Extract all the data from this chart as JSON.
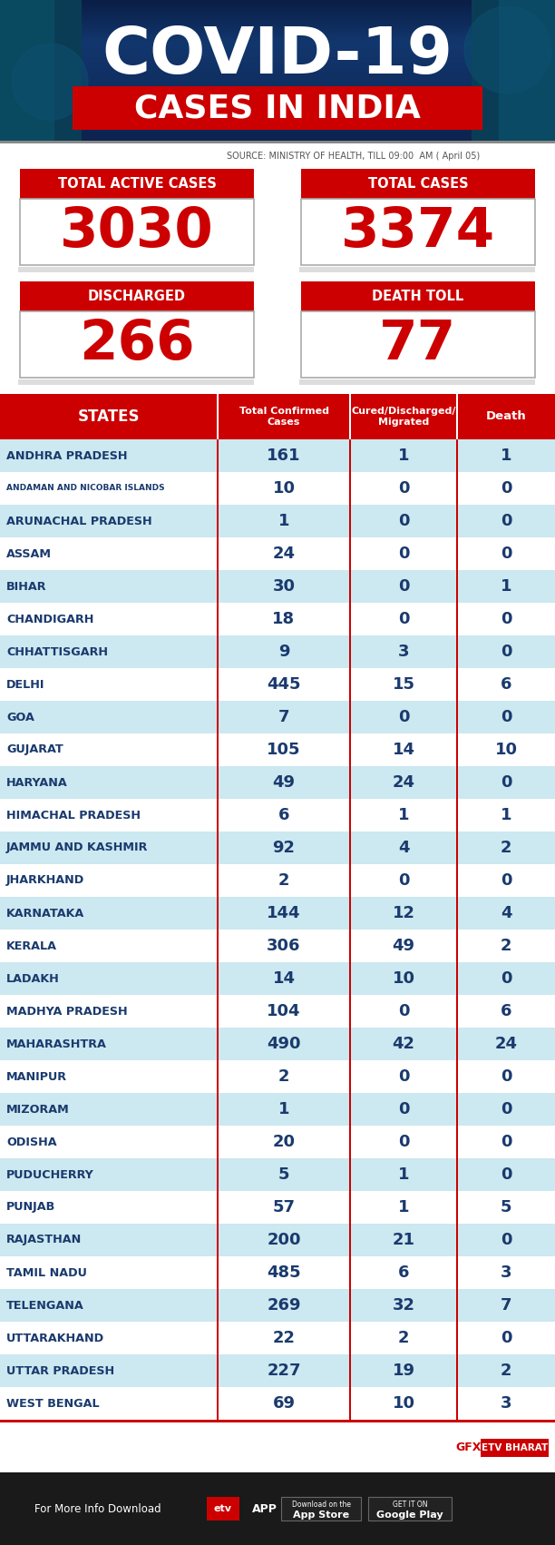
{
  "title_line1": "COVID-19",
  "title_line2": "CASES IN INDIA",
  "source_text": "SOURCE: MINISTRY OF HEALTH, TILL 09:00  AM ( April 05)",
  "header_banner_bg": "#0d2d5e",
  "cases_in_india_bg": "#cc0000",
  "summary_label_bg": "#cc0000",
  "summary_label_color": "#ffffff",
  "summary_value_color": "#cc0000",
  "col_divider_color": "#cc0000",
  "state_text_color": "#1a3a6e",
  "value_text_color": "#1a3a6e",
  "table_header_bg": "#cc0000",
  "row_colors": [
    "#cce8f0",
    "#ffffff"
  ],
  "footer_white_bg": "#ffffff",
  "footer_black_bg": "#1a1a1a",
  "gfx_color": "#cc0000",
  "etv_bharat_bg": "#cc0000",
  "summary_boxes": [
    [
      "TOTAL ACTIVE CASES",
      "3030"
    ],
    [
      "TOTAL CASES",
      "3374"
    ],
    [
      "DISCHARGED",
      "266"
    ],
    [
      "DEATH TOLL",
      "77"
    ]
  ],
  "table_headers": [
    "STATES",
    "Total Confirmed\nCases",
    "Cured/Discharged/\nMigrated",
    "Death"
  ],
  "rows": [
    [
      "ANDHRA PRADESH",
      "161",
      "1",
      "1"
    ],
    [
      "ANDAMAN AND NICOBAR ISLANDS",
      "10",
      "0",
      "0"
    ],
    [
      "ARUNACHAL PRADESH",
      "1",
      "0",
      "0"
    ],
    [
      "ASSAM",
      "24",
      "0",
      "0"
    ],
    [
      "BIHAR",
      "30",
      "0",
      "1"
    ],
    [
      "CHANDIGARH",
      "18",
      "0",
      "0"
    ],
    [
      "CHHATTISGARH",
      "9",
      "3",
      "0"
    ],
    [
      "DELHI",
      "445",
      "15",
      "6"
    ],
    [
      "GOA",
      "7",
      "0",
      "0"
    ],
    [
      "GUJARAT",
      "105",
      "14",
      "10"
    ],
    [
      "HARYANA",
      "49",
      "24",
      "0"
    ],
    [
      "HIMACHAL PRADESH",
      "6",
      "1",
      "1"
    ],
    [
      "JAMMU AND KASHMIR",
      "92",
      "4",
      "2"
    ],
    [
      "JHARKHAND",
      "2",
      "0",
      "0"
    ],
    [
      "KARNATAKA",
      "144",
      "12",
      "4"
    ],
    [
      "KERALA",
      "306",
      "49",
      "2"
    ],
    [
      "LADAKH",
      "14",
      "10",
      "0"
    ],
    [
      "MADHYA PRADESH",
      "104",
      "0",
      "6"
    ],
    [
      "MAHARASHTRA",
      "490",
      "42",
      "24"
    ],
    [
      "MANIPUR",
      "2",
      "0",
      "0"
    ],
    [
      "MIZORAM",
      "1",
      "0",
      "0"
    ],
    [
      "ODISHA",
      "20",
      "0",
      "0"
    ],
    [
      "PUDUCHERRY",
      "5",
      "1",
      "0"
    ],
    [
      "PUNJAB",
      "57",
      "1",
      "5"
    ],
    [
      "RAJASTHAN",
      "200",
      "21",
      "0"
    ],
    [
      "TAMIL NADU",
      "485",
      "6",
      "3"
    ],
    [
      "TELENGANA",
      "269",
      "32",
      "7"
    ],
    [
      "UTTARAKHAND",
      "22",
      "2",
      "0"
    ],
    [
      "UTTAR PRADESH",
      "227",
      "19",
      "2"
    ],
    [
      "WEST BENGAL",
      "69",
      "10",
      "3"
    ]
  ]
}
